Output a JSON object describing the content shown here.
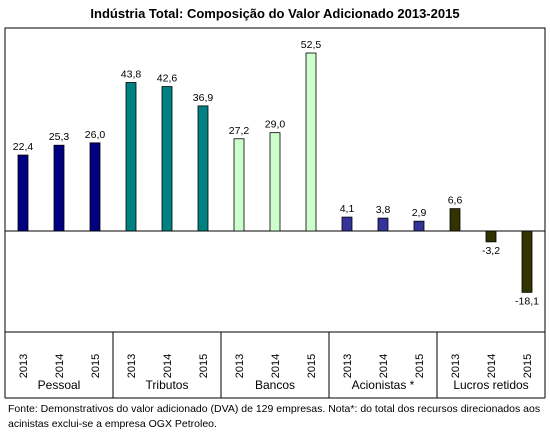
{
  "chart_data": {
    "type": "bar",
    "title": "Indústria Total: Composição do Valor Adicionado 2013-2015",
    "groups": [
      {
        "name": "Pessoal",
        "color": "#000080",
        "years": [
          "2013",
          "2014",
          "2015"
        ],
        "values": [
          22.4,
          25.3,
          26.0
        ],
        "labels": [
          "22,4",
          "25,3",
          "26,0"
        ]
      },
      {
        "name": "Tributos",
        "color": "#008080",
        "years": [
          "2013",
          "2014",
          "2015"
        ],
        "values": [
          43.8,
          42.6,
          36.9
        ],
        "labels": [
          "43,8",
          "42,6",
          "36,9"
        ]
      },
      {
        "name": "Bancos",
        "color": "#CCFFCC",
        "years": [
          "2013",
          "2014",
          "2015"
        ],
        "values": [
          27.2,
          29.0,
          52.5
        ],
        "labels": [
          "27,2",
          "29,0",
          "52,5"
        ]
      },
      {
        "name": "Acionistas *",
        "color": "#333399",
        "years": [
          "2013",
          "2014",
          "2015"
        ],
        "values": [
          4.1,
          3.8,
          2.9
        ],
        "labels": [
          "4,1",
          "3,8",
          "2,9"
        ]
      },
      {
        "name": "Lucros retidos",
        "color": "#333300",
        "years": [
          "2013",
          "2014",
          "2015"
        ],
        "values": [
          6.6,
          -3.2,
          -18.1
        ],
        "labels": [
          "6,6",
          "-3,2",
          "-18,1"
        ]
      }
    ],
    "ylim": [
      -21,
      62
    ],
    "grid": false,
    "legend": "none"
  },
  "footnote": "Fonte: Demonstrativos do valor adicionado (DVA) de 129 empresas. Nota*: do total dos recursos direcionados aos acinistas exclui-se a empresa OGX Petroleo."
}
